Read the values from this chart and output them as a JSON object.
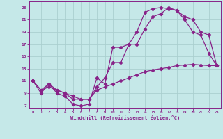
{
  "xlabel": "Windchill (Refroidissement éolien,°C)",
  "xlim": [
    -0.5,
    23.5
  ],
  "ylim": [
    6.5,
    24
  ],
  "yticks": [
    7,
    9,
    11,
    13,
    15,
    17,
    19,
    21,
    23
  ],
  "xticks": [
    0,
    1,
    2,
    3,
    4,
    5,
    6,
    7,
    8,
    9,
    10,
    11,
    12,
    13,
    14,
    15,
    16,
    17,
    18,
    19,
    20,
    21,
    22,
    23
  ],
  "background_color": "#c5e8e8",
  "grid_color": "#aacfcf",
  "line_color": "#882288",
  "line1_x": [
    0,
    1,
    2,
    3,
    4,
    5,
    6,
    7,
    8,
    9,
    10,
    11,
    12,
    13,
    14,
    15,
    16,
    17,
    18,
    19,
    20,
    21,
    22,
    23
  ],
  "line1_y": [
    11,
    9,
    10.5,
    9,
    8.5,
    7.2,
    6.9,
    7.2,
    11.5,
    10.5,
    16.5,
    16.5,
    17,
    19.0,
    22.2,
    22.8,
    23.0,
    22.8,
    22.5,
    21.0,
    19.0,
    18.5,
    15.5,
    13.5
  ],
  "line2_x": [
    0,
    1,
    2,
    3,
    4,
    5,
    6,
    7,
    8,
    9,
    10,
    11,
    12,
    13,
    14,
    15,
    16,
    17,
    18,
    19,
    20,
    21,
    22,
    23
  ],
  "line2_y": [
    11,
    9.5,
    10.5,
    9.5,
    9,
    8,
    8,
    8,
    10,
    11.5,
    14,
    14,
    17,
    17,
    19.5,
    21.5,
    22.0,
    23.0,
    22.5,
    21.5,
    21.0,
    19.0,
    18.5,
    13.5
  ],
  "line3_x": [
    0,
    1,
    2,
    3,
    4,
    5,
    6,
    7,
    8,
    9,
    10,
    11,
    12,
    13,
    14,
    15,
    16,
    17,
    18,
    19,
    20,
    21,
    22,
    23
  ],
  "line3_y": [
    11,
    9.5,
    10,
    9.5,
    9,
    8.5,
    8,
    8,
    9.5,
    10,
    10.5,
    11,
    11.5,
    12,
    12.5,
    12.8,
    13.0,
    13.2,
    13.5,
    13.6,
    13.7,
    13.6,
    13.5,
    13.5
  ]
}
